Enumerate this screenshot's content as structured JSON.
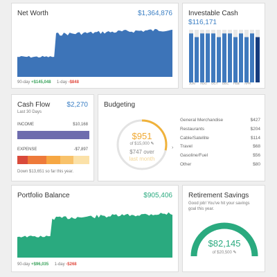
{
  "colors": {
    "net_worth_fill": "#3d74b8",
    "portfolio_fill": "#2aaa7f",
    "cash_bar": "#3f79bd",
    "cash_bar_dark": "#163c7e",
    "cash_bar_track": "#e8e8e8",
    "income_bar": "#6e6cae",
    "positive": "#3aa35b",
    "negative": "#e04a3f",
    "budget_ring": "#f0b23a",
    "retirement_arc": "#2aaa7f"
  },
  "net_worth": {
    "title": "Net Worth",
    "value": "$1,364,876",
    "label_90": "90-day",
    "change_90": "+$145,048",
    "label_1": "1-day",
    "change_1": "-$848"
  },
  "investable_cash": {
    "title": "Investable Cash",
    "value": "$116,171",
    "months": [
      "JUN",
      "AUG",
      "OCT",
      "DEC",
      "FEB",
      "APR"
    ],
    "bar_fractions": [
      0.93,
      0.86,
      0.93,
      0.93,
      0.93,
      0.86,
      0.93,
      0.93,
      0.86,
      0.93,
      0.86,
      0.93,
      0.86
    ]
  },
  "cash_flow": {
    "title": "Cash Flow",
    "value": "$2,270",
    "subtitle": "Last 30 Days",
    "income_label": "INCOME",
    "income_value": "$10,168",
    "expense_label": "EXPENSE",
    "expense_value": "-$7,897",
    "footer": "Down $13,651 so far this year."
  },
  "budgeting": {
    "title": "Budgeting",
    "amount": "$951",
    "of_text": "of $15,000",
    "over_text": "$747 over",
    "last_month": "last month",
    "categories": [
      {
        "name": "General Merchandise",
        "amount": "$427"
      },
      {
        "name": "Restaurants",
        "amount": "$204"
      },
      {
        "name": "Cable/Satellite",
        "amount": "$114"
      },
      {
        "name": "Travel",
        "amount": "$68"
      },
      {
        "name": "Gasoline/Fuel",
        "amount": "$56"
      },
      {
        "name": "Other",
        "amount": "$80"
      }
    ]
  },
  "portfolio": {
    "title": "Portfolio Balance",
    "value": "$905,406",
    "label_90": "90-day",
    "change_90": "+$96,035",
    "label_1": "1-day",
    "change_1": "-$268"
  },
  "retirement": {
    "title": "Retirement Savings",
    "message": "Good job! You've hit your savings goal this year.",
    "amount": "$82,145",
    "goal": "of $20,500"
  }
}
